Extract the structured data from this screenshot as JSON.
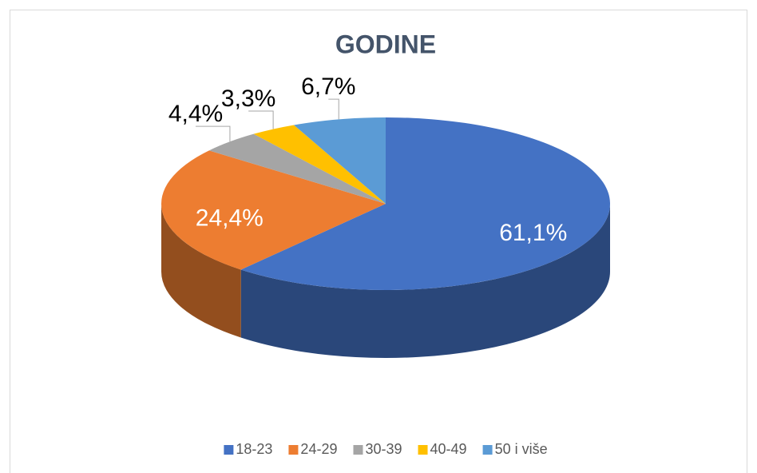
{
  "chart_data": {
    "type": "pie3d",
    "title": "GODINE",
    "categories": [
      "18-23",
      "24-29",
      "30-39",
      "40-49",
      "50 i više"
    ],
    "values": [
      61.1,
      24.4,
      4.4,
      3.3,
      6.7
    ],
    "value_labels": [
      "61,1%",
      "24,4%",
      "4,4%",
      "3,3%",
      "6,7%"
    ],
    "colors": [
      "#4472c4",
      "#ed7d31",
      "#a5a5a5",
      "#ffc000",
      "#5b9bd5"
    ],
    "legend": "bottom"
  }
}
